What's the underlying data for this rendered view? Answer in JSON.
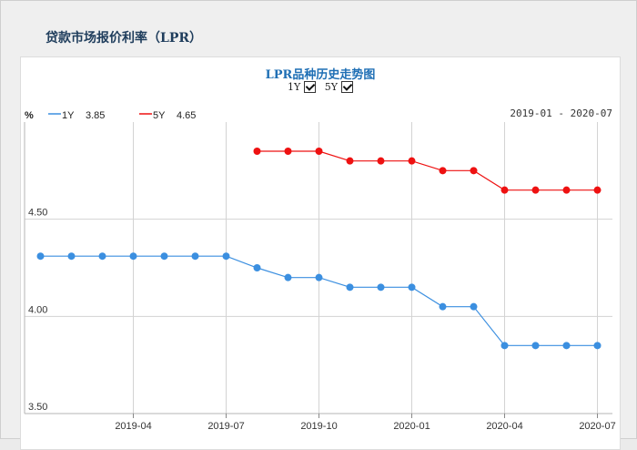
{
  "page": {
    "title": "贷款市场报价利率（LPR）"
  },
  "toggles": [
    {
      "label": "1Y",
      "checked": true
    },
    {
      "label": "5Y",
      "checked": true
    }
  ],
  "chart_data": {
    "type": "line",
    "title": "LPR品种历史走势图",
    "ylabel": "%",
    "date_range": "2019-01 - 2020-07",
    "ylim": [
      3.5,
      5.0
    ],
    "yticks": [
      "4.50",
      "4.00",
      "3.50"
    ],
    "xticks": [
      "2019-04",
      "2019-07",
      "2019-10",
      "2020-01",
      "2020-04",
      "2020-07"
    ],
    "x": [
      "2019-01",
      "2019-02",
      "2019-03",
      "2019-04",
      "2019-05",
      "2019-06",
      "2019-07",
      "2019-08",
      "2019-09",
      "2019-10",
      "2019-11",
      "2019-12",
      "2020-01",
      "2020-02",
      "2020-03",
      "2020-04",
      "2020-05",
      "2020-06",
      "2020-07"
    ],
    "grid": true,
    "legend_position": "top-left",
    "series": [
      {
        "name": "1Y",
        "latest": "3.85",
        "color": "#3b8fe0",
        "values": [
          4.31,
          4.31,
          4.31,
          4.31,
          4.31,
          4.31,
          4.31,
          4.25,
          4.2,
          4.2,
          4.15,
          4.15,
          4.15,
          4.05,
          4.05,
          3.85,
          3.85,
          3.85,
          3.85
        ]
      },
      {
        "name": "5Y",
        "latest": "4.65",
        "color": "#ee1111",
        "values": [
          null,
          null,
          null,
          null,
          null,
          null,
          null,
          4.85,
          4.85,
          4.85,
          4.8,
          4.8,
          4.8,
          4.75,
          4.75,
          4.65,
          4.65,
          4.65,
          4.65
        ]
      }
    ]
  }
}
